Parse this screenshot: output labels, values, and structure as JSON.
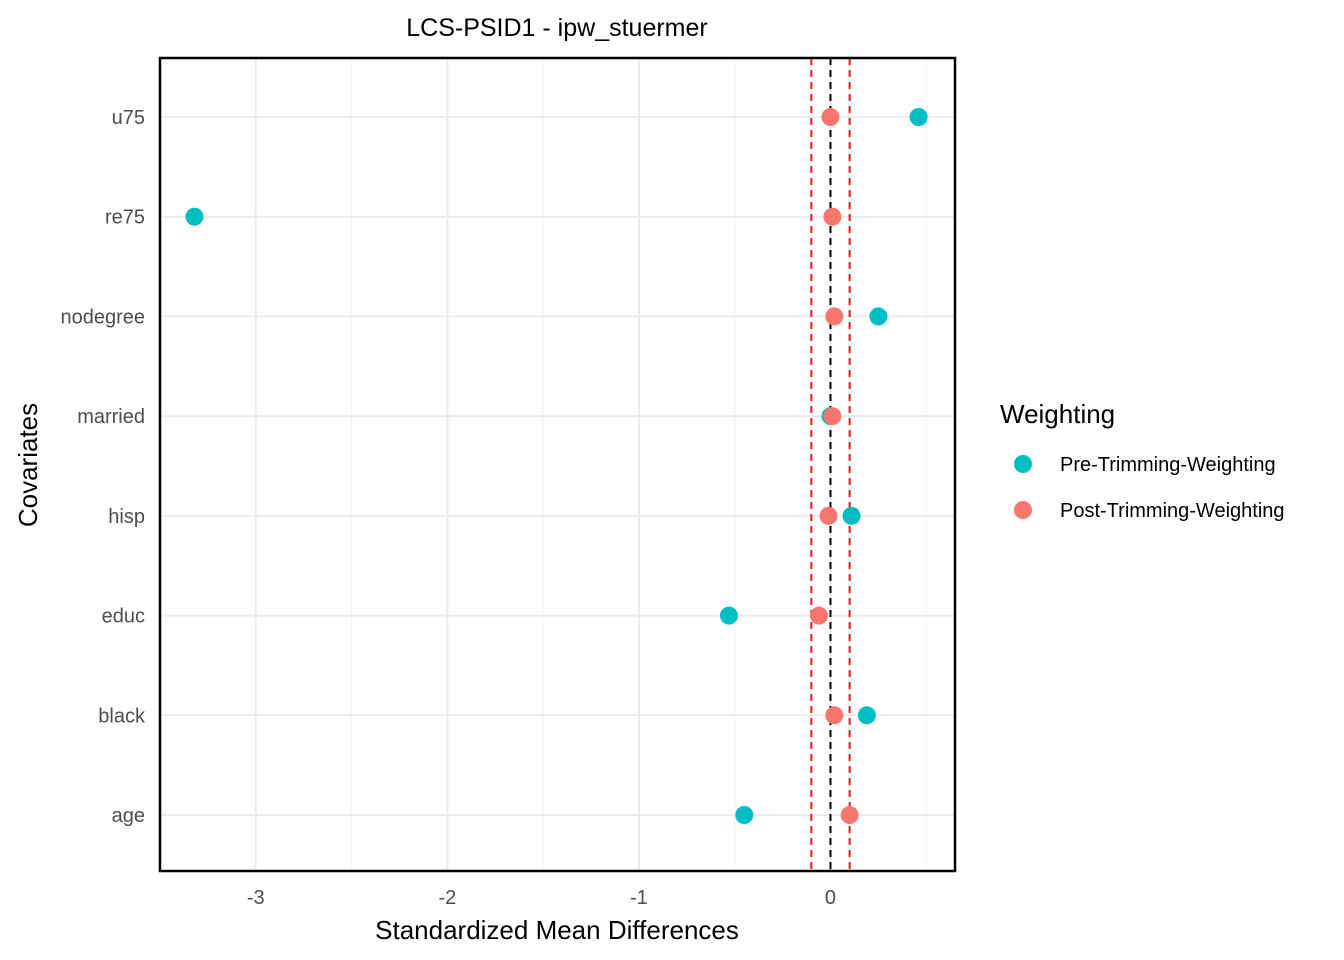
{
  "chart_data": {
    "type": "scatter",
    "title": "LCS-PSID1 - ipw_stuermer",
    "xlabel": "Standardized Mean Differences",
    "ylabel": "Covariates",
    "xlim": [
      -3.5,
      0.65
    ],
    "x_ticks": [
      -3,
      -2,
      -1,
      0
    ],
    "x_tick_labels": [
      "-3",
      "-2",
      "-1",
      "0"
    ],
    "categories": [
      "age",
      "black",
      "educ",
      "hisp",
      "married",
      "nodegree",
      "re75",
      "u75"
    ],
    "series": [
      {
        "name": "Pre-Trimming-Weighting",
        "color": "#00BFC4",
        "values": [
          -0.45,
          0.19,
          -0.53,
          0.11,
          0.0,
          0.25,
          -3.32,
          0.46
        ]
      },
      {
        "name": "Post-Trimming-Weighting",
        "color": "#F8766D",
        "values": [
          0.1,
          0.02,
          -0.06,
          -0.01,
          0.01,
          0.02,
          0.01,
          0.0
        ]
      }
    ],
    "reference_lines": [
      {
        "x": 0,
        "color": "#000000",
        "style": "dashed"
      },
      {
        "x": -0.1,
        "color": "#E41A1C",
        "style": "dashed"
      },
      {
        "x": 0.1,
        "color": "#E41A1C",
        "style": "dashed"
      }
    ],
    "legend": {
      "title": "Weighting",
      "placement": "right",
      "entries": [
        "Pre-Trimming-Weighting",
        "Post-Trimming-Weighting"
      ]
    },
    "grid": true
  }
}
